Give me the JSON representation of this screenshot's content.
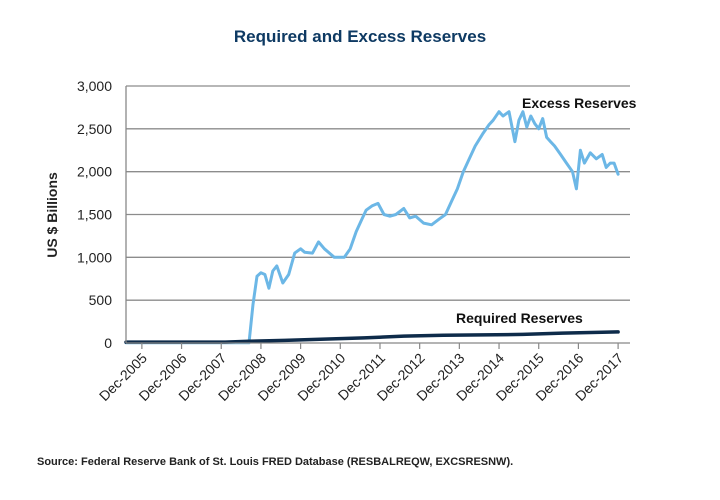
{
  "chart_data": {
    "type": "line",
    "title": "Required and Excess Reserves",
    "xlabel": "",
    "ylabel": "US $ Billions",
    "ylim": [
      0,
      3000
    ],
    "xlim": [
      2005.5,
      2018.2
    ],
    "grid": true,
    "yticks": [
      0,
      500,
      1000,
      1500,
      2000,
      2500,
      3000
    ],
    "ytick_labels": [
      "0",
      "500",
      "1,000",
      "1,500",
      "2,000",
      "2,500",
      "3,000"
    ],
    "xticks": [
      2005.9,
      2006.9,
      2007.9,
      2008.9,
      2009.9,
      2010.9,
      2011.9,
      2012.9,
      2013.9,
      2014.9,
      2015.9,
      2016.9,
      2017.9
    ],
    "xtick_labels": [
      "Dec-2005",
      "Dec-2006",
      "Dec-2007",
      "Dec-2008",
      "Dec-2009",
      "Dec-2010",
      "Dec-2011",
      "Dec-2012",
      "Dec-2013",
      "Dec-2014",
      "Dec-2015",
      "Dec-2016",
      "Dec-2017"
    ],
    "series": [
      {
        "name": "Excess Reserves",
        "color": "#6cb7e6",
        "x": [
          2005.5,
          2006.0,
          2007.0,
          2008.0,
          2008.25,
          2008.6,
          2008.7,
          2008.8,
          2008.9,
          2009.0,
          2009.1,
          2009.2,
          2009.3,
          2009.45,
          2009.6,
          2009.75,
          2009.9,
          2010.0,
          2010.2,
          2010.35,
          2010.5,
          2010.75,
          2011.0,
          2011.15,
          2011.3,
          2011.45,
          2011.55,
          2011.7,
          2011.85,
          2012.0,
          2012.15,
          2012.3,
          2012.5,
          2012.65,
          2012.8,
          2013.0,
          2013.2,
          2013.4,
          2013.55,
          2013.7,
          2013.85,
          2014.0,
          2014.15,
          2014.3,
          2014.5,
          2014.65,
          2014.75,
          2014.9,
          2015.0,
          2015.15,
          2015.3,
          2015.4,
          2015.5,
          2015.6,
          2015.7,
          2015.8,
          2015.9,
          2016.0,
          2016.1,
          2016.2,
          2016.3,
          2016.45,
          2016.6,
          2016.75,
          2016.85,
          2016.95,
          2017.05,
          2017.2,
          2017.35,
          2017.5,
          2017.6,
          2017.7,
          2017.8,
          2017.9
        ],
        "values": [
          2,
          2,
          2,
          2,
          2,
          2,
          450,
          780,
          820,
          800,
          640,
          840,
          900,
          700,
          800,
          1050,
          1100,
          1060,
          1050,
          1180,
          1100,
          1000,
          1000,
          1100,
          1300,
          1450,
          1550,
          1600,
          1630,
          1500,
          1480,
          1500,
          1570,
          1460,
          1480,
          1400,
          1380,
          1450,
          1500,
          1650,
          1800,
          2000,
          2150,
          2300,
          2450,
          2550,
          2600,
          2700,
          2650,
          2700,
          2350,
          2600,
          2700,
          2520,
          2650,
          2560,
          2500,
          2620,
          2400,
          2350,
          2300,
          2200,
          2100,
          2000,
          1800,
          2250,
          2100,
          2220,
          2150,
          2200,
          2050,
          2100,
          2100,
          1970
        ]
      },
      {
        "name": "Required Reserves",
        "color": "#0e2b4a",
        "x": [
          2005.5,
          2008.0,
          2008.6,
          2009.5,
          2010.5,
          2011.5,
          2012.5,
          2013.5,
          2014.5,
          2015.5,
          2016.5,
          2017.5,
          2017.9
        ],
        "values": [
          10,
          10,
          20,
          30,
          45,
          60,
          80,
          90,
          95,
          100,
          115,
          125,
          130
        ]
      }
    ],
    "annotations": [
      "Excess Reserves",
      "Required Reserves"
    ]
  },
  "source": "Source:  Federal Reserve Bank of St. Louis FRED Database (RESBALREQW, EXCSRESNW)."
}
